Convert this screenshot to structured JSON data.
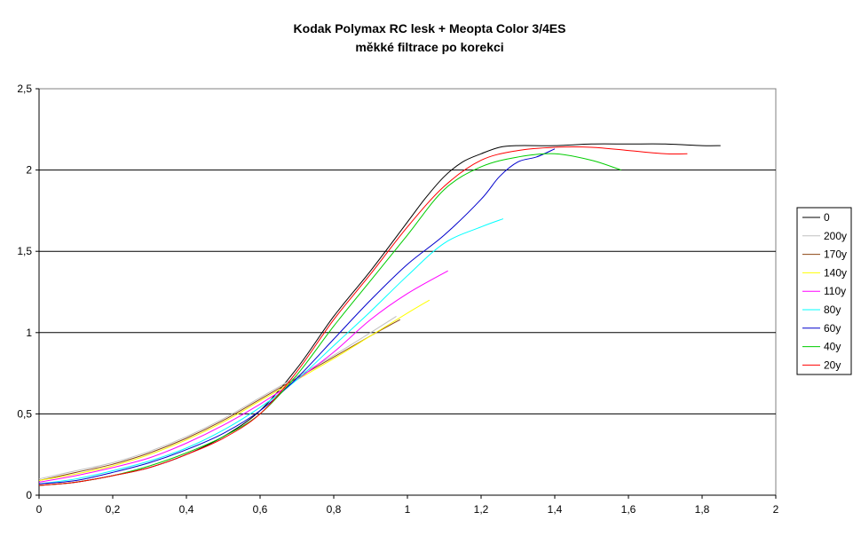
{
  "chart_data": {
    "type": "line",
    "title": "Kodak Polymax RC lesk + Meopta Color 3/4ES",
    "subtitle": "měkké filtrace po korekci",
    "xlabel": "",
    "ylabel": "",
    "xlim": [
      0,
      2
    ],
    "ylim": [
      0,
      2.5
    ],
    "x_ticks": [
      "0",
      "0,2",
      "0,4",
      "0,6",
      "0,8",
      "1",
      "1,2",
      "1,4",
      "1,6",
      "1,8",
      "2"
    ],
    "y_ticks": [
      "0",
      "0,5",
      "1",
      "1,5",
      "2",
      "2,5"
    ],
    "grid": "horizontal",
    "legend_position": "right",
    "series": [
      {
        "name": "0",
        "color": "#000000",
        "x": [
          0,
          0.1,
          0.2,
          0.3,
          0.4,
          0.5,
          0.6,
          0.7,
          0.8,
          0.9,
          1.0,
          1.05,
          1.1,
          1.15,
          1.2,
          1.25,
          1.3,
          1.4,
          1.5,
          1.6,
          1.7,
          1.8,
          1.85
        ],
        "y": [
          0.06,
          0.08,
          0.12,
          0.17,
          0.25,
          0.36,
          0.52,
          0.78,
          1.1,
          1.38,
          1.68,
          1.83,
          1.96,
          2.05,
          2.1,
          2.14,
          2.15,
          2.15,
          2.16,
          2.16,
          2.16,
          2.15,
          2.15
        ]
      },
      {
        "name": "200y",
        "color": "#c0c0c0",
        "x": [
          0,
          0.1,
          0.2,
          0.3,
          0.4,
          0.5,
          0.6,
          0.7,
          0.8,
          0.9,
          0.97
        ],
        "y": [
          0.1,
          0.15,
          0.2,
          0.27,
          0.36,
          0.47,
          0.6,
          0.73,
          0.86,
          1.0,
          1.1
        ]
      },
      {
        "name": "170y",
        "color": "#8b4513",
        "x": [
          0,
          0.1,
          0.2,
          0.3,
          0.4,
          0.5,
          0.6,
          0.7,
          0.8,
          0.9,
          0.98
        ],
        "y": [
          0.09,
          0.14,
          0.19,
          0.26,
          0.35,
          0.46,
          0.59,
          0.72,
          0.85,
          0.98,
          1.08
        ]
      },
      {
        "name": "140y",
        "color": "#ffff00",
        "x": [
          0,
          0.1,
          0.2,
          0.3,
          0.4,
          0.5,
          0.6,
          0.7,
          0.8,
          0.9,
          1.0,
          1.06
        ],
        "y": [
          0.09,
          0.13,
          0.18,
          0.25,
          0.34,
          0.45,
          0.58,
          0.71,
          0.84,
          0.98,
          1.12,
          1.2
        ]
      },
      {
        "name": "110y",
        "color": "#ff00ff",
        "x": [
          0,
          0.1,
          0.2,
          0.3,
          0.4,
          0.5,
          0.6,
          0.7,
          0.8,
          0.9,
          1.0,
          1.11
        ],
        "y": [
          0.08,
          0.12,
          0.17,
          0.23,
          0.32,
          0.43,
          0.56,
          0.71,
          0.88,
          1.08,
          1.24,
          1.38
        ]
      },
      {
        "name": "80y",
        "color": "#00ffff",
        "x": [
          0,
          0.1,
          0.2,
          0.3,
          0.4,
          0.5,
          0.6,
          0.7,
          0.8,
          0.9,
          1.0,
          1.1,
          1.2,
          1.26
        ],
        "y": [
          0.07,
          0.1,
          0.15,
          0.21,
          0.29,
          0.4,
          0.54,
          0.71,
          0.92,
          1.13,
          1.35,
          1.55,
          1.65,
          1.7
        ]
      },
      {
        "name": "60y",
        "color": "#0000cc",
        "x": [
          0,
          0.1,
          0.2,
          0.3,
          0.4,
          0.5,
          0.6,
          0.7,
          0.8,
          0.9,
          1.0,
          1.1,
          1.2,
          1.25,
          1.3,
          1.35,
          1.4
        ],
        "y": [
          0.07,
          0.09,
          0.14,
          0.2,
          0.28,
          0.38,
          0.52,
          0.72,
          0.96,
          1.2,
          1.42,
          1.6,
          1.82,
          1.96,
          2.05,
          2.08,
          2.13
        ]
      },
      {
        "name": "40y",
        "color": "#00cc00",
        "x": [
          0,
          0.1,
          0.2,
          0.3,
          0.4,
          0.5,
          0.6,
          0.7,
          0.8,
          0.9,
          1.0,
          1.1,
          1.2,
          1.3,
          1.4,
          1.5,
          1.58
        ],
        "y": [
          0.06,
          0.08,
          0.12,
          0.18,
          0.26,
          0.36,
          0.5,
          0.74,
          1.04,
          1.32,
          1.6,
          1.88,
          2.02,
          2.08,
          2.1,
          2.06,
          2.0
        ]
      },
      {
        "name": "20y",
        "color": "#ff0000",
        "x": [
          0,
          0.1,
          0.2,
          0.3,
          0.4,
          0.5,
          0.6,
          0.7,
          0.8,
          0.9,
          1.0,
          1.1,
          1.2,
          1.3,
          1.4,
          1.5,
          1.6,
          1.7,
          1.76
        ],
        "y": [
          0.06,
          0.08,
          0.12,
          0.17,
          0.25,
          0.35,
          0.5,
          0.76,
          1.08,
          1.36,
          1.65,
          1.9,
          2.06,
          2.12,
          2.14,
          2.14,
          2.12,
          2.1,
          2.1
        ]
      }
    ]
  }
}
